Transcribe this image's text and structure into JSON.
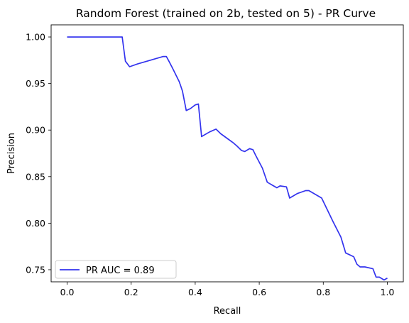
{
  "chart_data": {
    "type": "line",
    "title": "Random Forest (trained on 2b, tested on 5) -  PR Curve",
    "xlabel": "Recall",
    "ylabel": "Precision",
    "xlim": [
      -0.05,
      1.05
    ],
    "ylim": [
      0.737,
      1.013
    ],
    "xticks": [
      0.0,
      0.2,
      0.4,
      0.6,
      0.8,
      1.0
    ],
    "xtick_labels": [
      "0.0",
      "0.2",
      "0.4",
      "0.6",
      "0.8",
      "1.0"
    ],
    "yticks": [
      0.75,
      0.8,
      0.85,
      0.9,
      0.95,
      1.0
    ],
    "ytick_labels": [
      "0.75",
      "0.80",
      "0.85",
      "0.90",
      "0.95",
      "1.00"
    ],
    "grid": false,
    "legend_position": "lower left",
    "series": [
      {
        "name": "PR AUC = 0.89",
        "color": "#3333ee",
        "x": [
          0.0,
          0.05,
          0.1,
          0.15,
          0.172,
          0.182,
          0.195,
          0.22,
          0.26,
          0.3,
          0.31,
          0.318,
          0.33,
          0.35,
          0.36,
          0.372,
          0.385,
          0.4,
          0.41,
          0.42,
          0.445,
          0.465,
          0.48,
          0.5,
          0.52,
          0.53,
          0.545,
          0.555,
          0.57,
          0.58,
          0.59,
          0.61,
          0.625,
          0.655,
          0.665,
          0.685,
          0.695,
          0.72,
          0.745,
          0.755,
          0.765,
          0.795,
          0.83,
          0.855,
          0.87,
          0.895,
          0.905,
          0.915,
          0.93,
          0.955,
          0.965,
          0.975,
          0.99,
          1.0
        ],
        "y": [
          1.0,
          1.0,
          1.0,
          1.0,
          1.0,
          0.974,
          0.968,
          0.971,
          0.975,
          0.979,
          0.979,
          0.974,
          0.966,
          0.952,
          0.942,
          0.921,
          0.923,
          0.927,
          0.928,
          0.893,
          0.898,
          0.901,
          0.896,
          0.891,
          0.886,
          0.883,
          0.878,
          0.877,
          0.88,
          0.879,
          0.872,
          0.859,
          0.844,
          0.838,
          0.84,
          0.839,
          0.827,
          0.832,
          0.835,
          0.835,
          0.833,
          0.827,
          0.802,
          0.785,
          0.768,
          0.764,
          0.756,
          0.753,
          0.753,
          0.751,
          0.742,
          0.742,
          0.739,
          0.741
        ]
      }
    ]
  }
}
